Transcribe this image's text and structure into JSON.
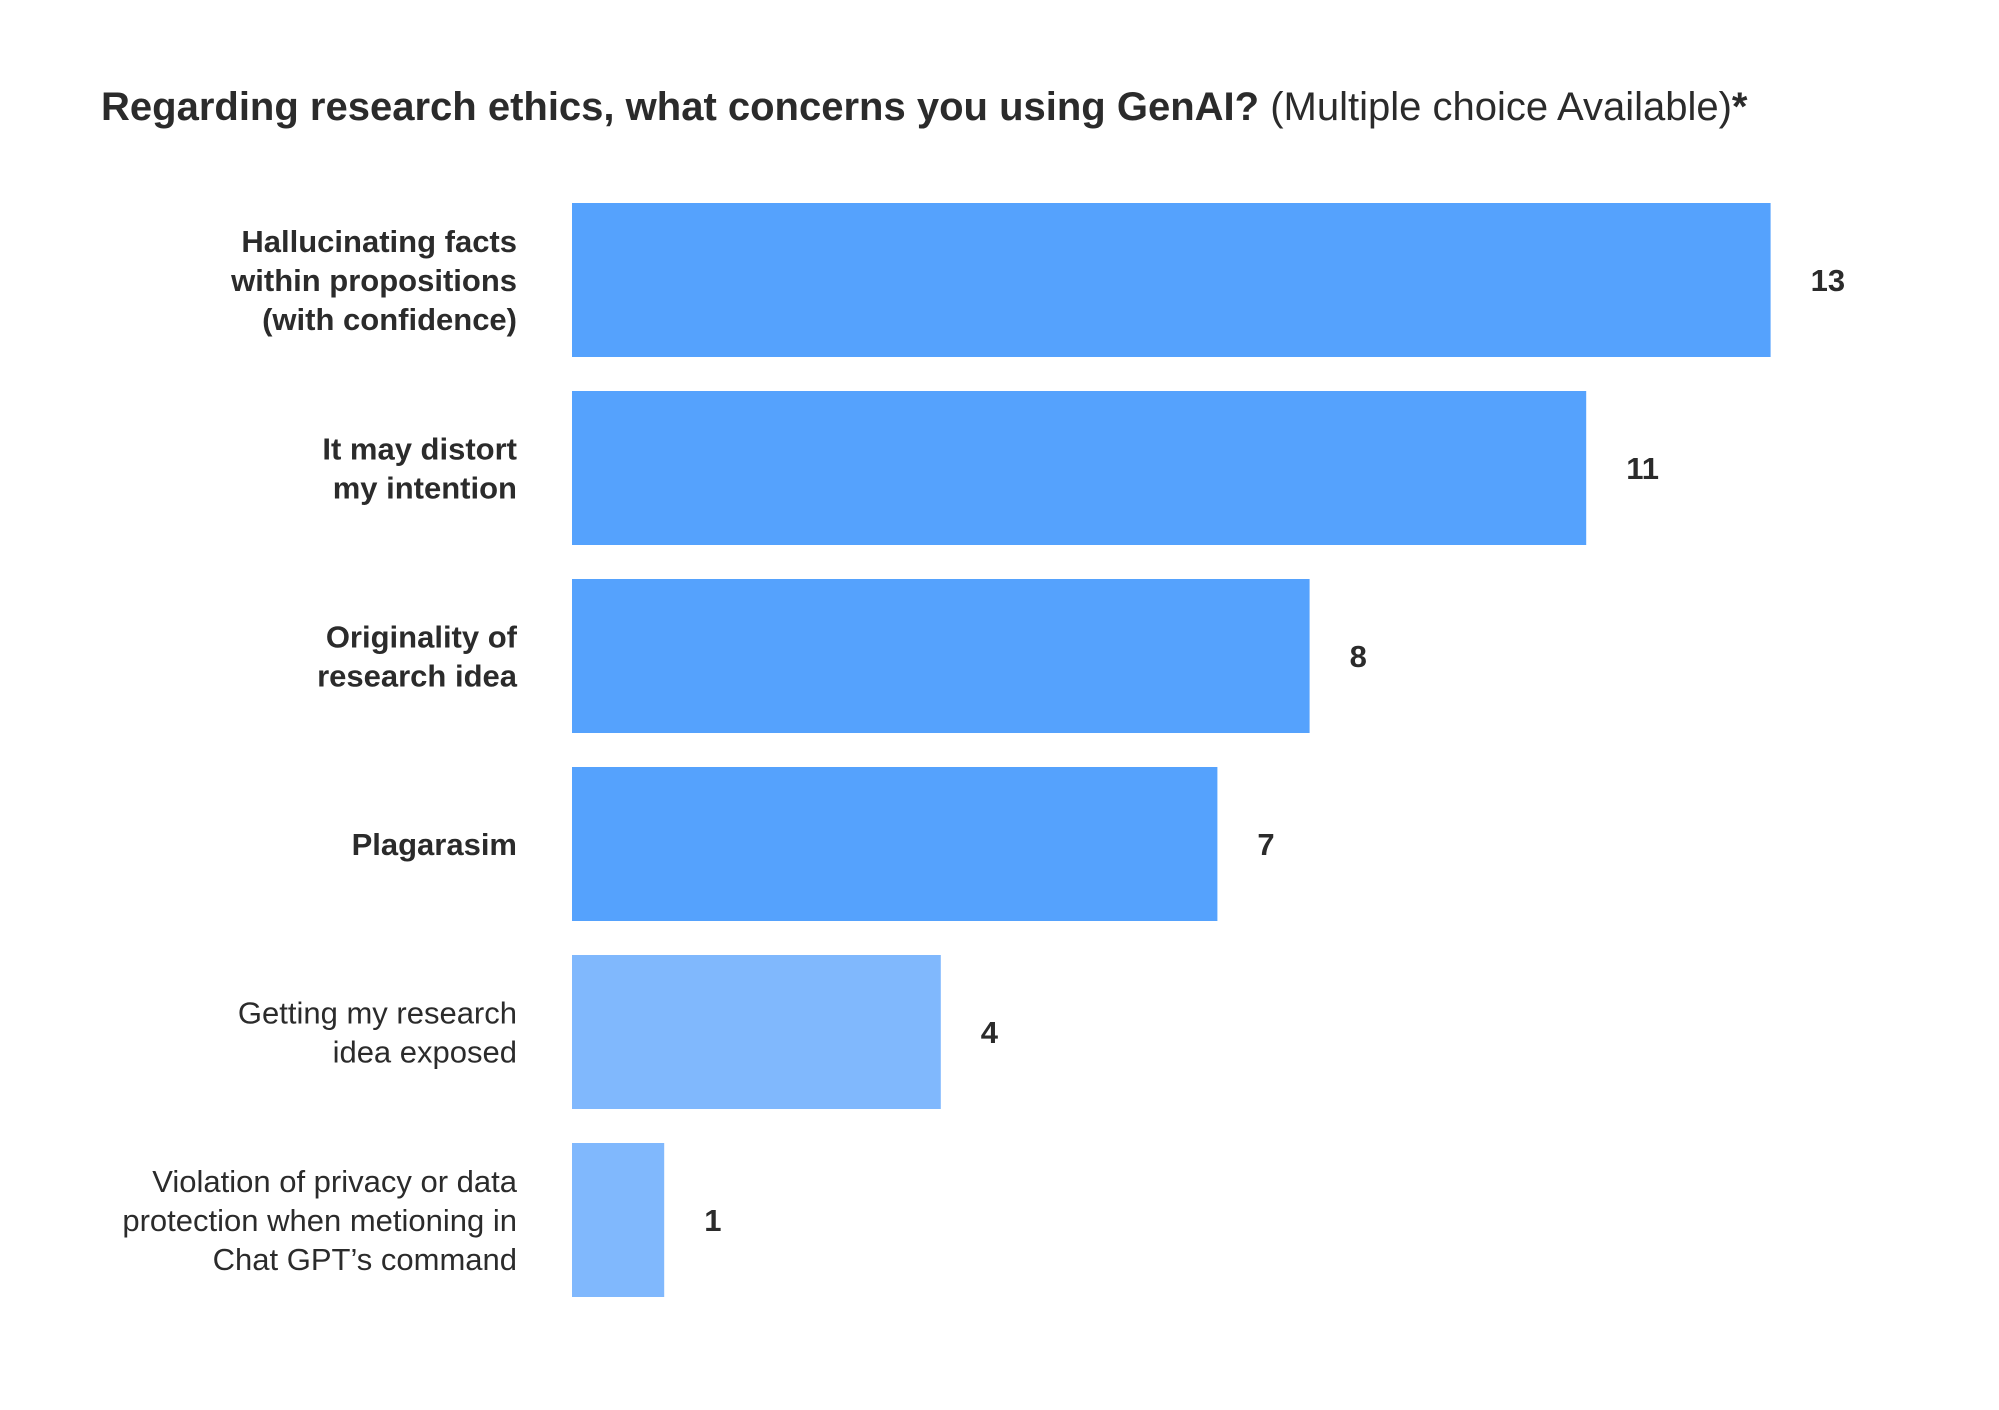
{
  "chart_data": {
    "type": "bar",
    "orientation": "horizontal",
    "title": "Regarding research ethics, what concerns you using GenAI?",
    "subtitle": "(Multiple choice Available)",
    "title_marker": "*",
    "xlabel": "",
    "ylabel": "",
    "grid": false,
    "legend": "none",
    "xlim": [
      0,
      13
    ],
    "colors": {
      "primary": "#55a2fd",
      "secondary": "#80b8fd"
    },
    "categories": [
      [
        "Hallucinating facts",
        "within propositions",
        "(with confidence)"
      ],
      [
        "It may distort",
        "my intention"
      ],
      [
        "Originality of",
        "research idea"
      ],
      [
        "Plagarasim"
      ],
      [
        "Getting my research",
        "idea exposed"
      ],
      [
        "Violation of privacy or data",
        "protection when metioning in",
        "Chat GPT’s command"
      ]
    ],
    "values": [
      13,
      11,
      8,
      7,
      4,
      1
    ],
    "emphasis": [
      "primary",
      "primary",
      "primary",
      "primary",
      "secondary",
      "secondary"
    ]
  }
}
